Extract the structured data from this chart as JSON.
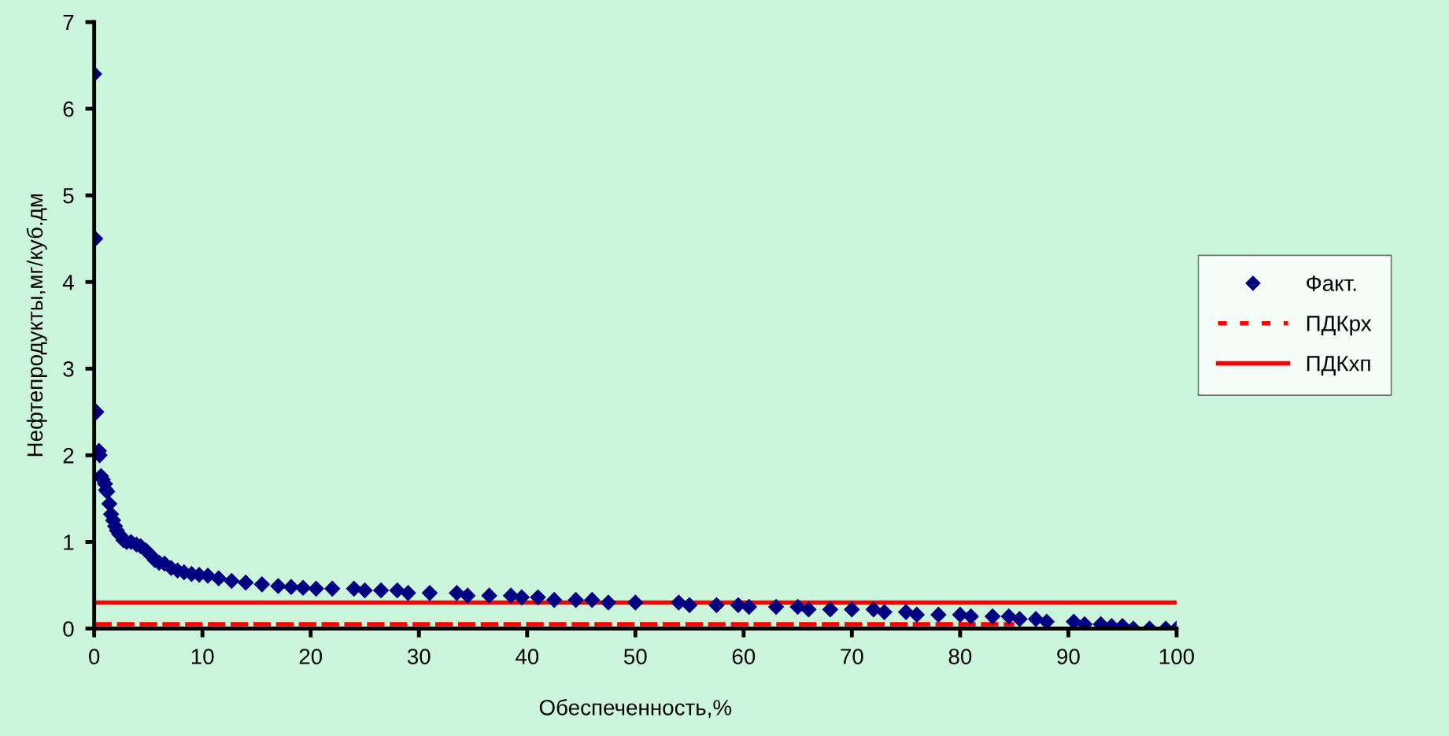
{
  "chart_data": {
    "type": "scatter",
    "xlabel": "Обеспеченность,%",
    "ylabel": "Нефтепродукты,мг/куб.дм",
    "xlim": [
      0,
      100
    ],
    "ylim": [
      0,
      7
    ],
    "xticks": [
      0,
      10,
      20,
      30,
      40,
      50,
      60,
      70,
      80,
      90,
      100
    ],
    "yticks": [
      0,
      1,
      2,
      3,
      4,
      5,
      6,
      7
    ],
    "grid": false,
    "legend": "right",
    "series": [
      {
        "name": "Факт.",
        "marker": "diamond",
        "color": "#000080",
        "x": [
          0,
          0.1,
          0.2,
          0.44,
          0.5,
          0.63,
          0.8,
          1.0,
          1.1,
          1.2,
          1.4,
          1.56,
          1.75,
          1.93,
          2.1,
          2.3,
          2.7,
          3.0,
          3.4,
          3.9,
          4.3,
          4.8,
          5.2,
          5.6,
          6.0,
          6.5,
          7.1,
          7.7,
          8.3,
          9.0,
          9.7,
          10.5,
          11.5,
          12.7,
          14.0,
          15.5,
          17.0,
          18.2,
          19.3,
          20.5,
          22.0,
          24.0,
          25.0,
          26.5,
          28.0,
          29.0,
          31.0,
          33.5,
          34.5,
          36.5,
          38.5,
          39.5,
          41.0,
          42.5,
          44.5,
          46.0,
          47.5,
          50.0,
          54.0,
          55.0,
          57.5,
          59.5,
          60.5,
          63.0,
          65.0,
          66.0,
          68.0,
          70.0,
          72.0,
          73.0,
          75.0,
          76.0,
          78.0,
          80.0,
          81.0,
          83.0,
          84.5,
          85.5,
          87.0,
          88.0,
          90.5,
          91.5,
          93.0,
          94.0,
          95.0,
          96.0,
          97.5,
          99.0,
          100.0
        ],
        "values": [
          6.4,
          4.5,
          2.5,
          2.05,
          2.0,
          1.76,
          1.72,
          1.67,
          1.6,
          1.58,
          1.44,
          1.32,
          1.25,
          1.18,
          1.13,
          1.09,
          1.02,
          1.0,
          1.0,
          0.97,
          0.95,
          0.9,
          0.85,
          0.79,
          0.76,
          0.75,
          0.7,
          0.67,
          0.65,
          0.63,
          0.62,
          0.61,
          0.58,
          0.55,
          0.53,
          0.51,
          0.49,
          0.48,
          0.47,
          0.46,
          0.46,
          0.46,
          0.44,
          0.44,
          0.44,
          0.41,
          0.41,
          0.41,
          0.38,
          0.38,
          0.38,
          0.36,
          0.36,
          0.33,
          0.33,
          0.33,
          0.3,
          0.3,
          0.3,
          0.27,
          0.27,
          0.27,
          0.25,
          0.25,
          0.25,
          0.22,
          0.22,
          0.22,
          0.22,
          0.19,
          0.19,
          0.16,
          0.16,
          0.16,
          0.14,
          0.14,
          0.14,
          0.11,
          0.11,
          0.08,
          0.08,
          0.05,
          0.05,
          0.03,
          0.03,
          0,
          0,
          0,
          0
        ]
      },
      {
        "name": "ПДКрх",
        "type": "line",
        "line_style": "dashed",
        "marker": "none",
        "color": "#ff0000",
        "x": [
          0,
          85
        ],
        "values": [
          0.05,
          0.05
        ]
      },
      {
        "name": "ПДКхп",
        "type": "line",
        "line_style": "solid",
        "marker": "none",
        "color": "#ff0000",
        "x": [
          0,
          100
        ],
        "values": [
          0.3,
          0.3
        ]
      }
    ]
  }
}
